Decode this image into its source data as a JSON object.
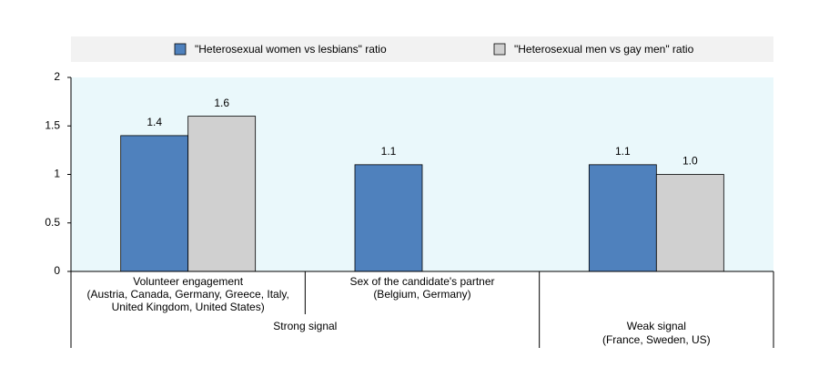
{
  "chart_data": {
    "type": "bar",
    "categories": [
      [
        "Volunteer engagement",
        "(Austria, Canada, Germany, Greece, Italy,",
        "United Kingdom, United States)"
      ],
      [
        "Sex of the candidate's partner",
        "(Belgium, Germany)"
      ],
      [
        "",
        ""
      ]
    ],
    "groups": [
      [
        "Strong signal"
      ],
      [
        "Weak signal",
        "(France, Sweden, US)"
      ]
    ],
    "series": [
      {
        "name": "\"Heterosexual women vs lesbians\" ratio",
        "color": "#4f81bd",
        "values": [
          1.4,
          1.1,
          1.1
        ]
      },
      {
        "name": "\"Heterosexual men vs gay men\" ratio",
        "color": "#d0d0d0",
        "values": [
          1.6,
          null,
          1.0
        ],
        "value_labels": [
          "1.6",
          null,
          "1.0"
        ]
      }
    ],
    "ylim": [
      0,
      2
    ],
    "yticks": [
      0,
      0.5,
      1,
      1.5,
      2
    ],
    "plot_background": "#eaf8fb"
  }
}
